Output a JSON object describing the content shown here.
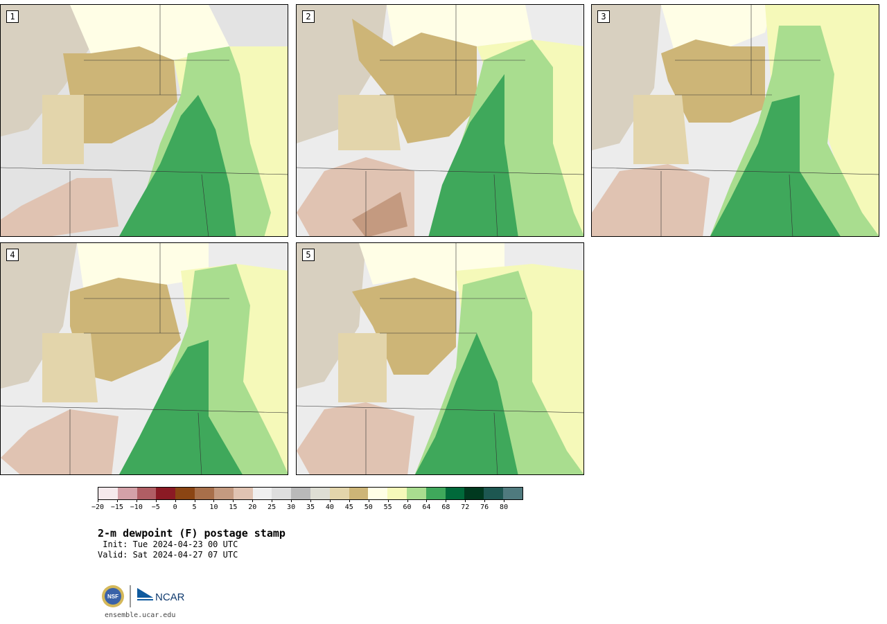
{
  "panels": [
    {
      "label": "1"
    },
    {
      "label": "2"
    },
    {
      "label": "3"
    },
    {
      "label": "4"
    },
    {
      "label": "5"
    }
  ],
  "colorbar": {
    "colors": [
      "#f5e9ec",
      "#d4a1a8",
      "#b05e64",
      "#8b1a24",
      "#8b4513",
      "#a86f4a",
      "#c49a80",
      "#e0c3b2",
      "#efefef",
      "#dedede",
      "#b9b9b9",
      "#deded4",
      "#e3d5ab",
      "#cdb577",
      "#fffee6",
      "#f5f9b9",
      "#a9dd8f",
      "#3fa85b",
      "#00693a",
      "#00391f",
      "#1d5751",
      "#4f7a7e"
    ],
    "ticks": [
      "−20",
      "−15",
      "−10",
      "−5",
      "0",
      "5",
      "10",
      "15",
      "20",
      "25",
      "30",
      "35",
      "40",
      "45",
      "50",
      "55",
      "60",
      "64",
      "68",
      "72",
      "76",
      "80"
    ]
  },
  "footer": {
    "title": "2-m dewpoint (F) postage stamp",
    "init": " Init: Tue 2024-04-23 00 UTC",
    "valid": "Valid: Sat 2024-04-27 07 UTC",
    "logo_text_nsf": "NSF",
    "logo_text_ncar": "NCAR",
    "website": "ensemble.ucar.edu"
  }
}
